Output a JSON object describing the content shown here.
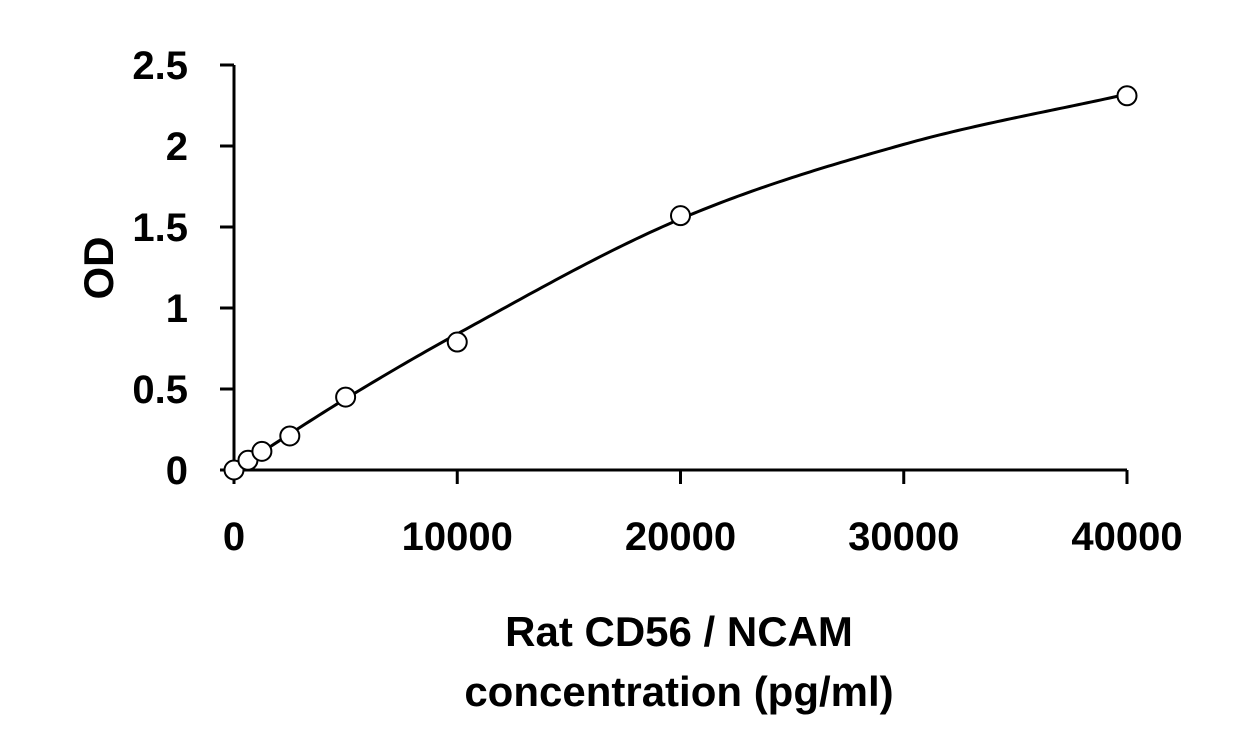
{
  "chart_data": {
    "type": "scatter",
    "title": "",
    "xlabel_lines": [
      "Rat CD56 / NCAM",
      "concentration (pg/ml)"
    ],
    "ylabel": "OD",
    "xlim": [
      0,
      40000
    ],
    "ylim": [
      0,
      2.5
    ],
    "x_ticks": [
      0,
      10000,
      20000,
      30000,
      40000
    ],
    "y_ticks": [
      0,
      0.5,
      1,
      1.5,
      2,
      2.5
    ],
    "x_tick_labels": [
      "0",
      "10000",
      "20000",
      "30000",
      "40000"
    ],
    "y_tick_labels": [
      "0",
      "0.5",
      "1",
      "1.5",
      "2",
      "2.5"
    ],
    "grid": false,
    "legend": "none",
    "series": [
      {
        "marker": "open-circle",
        "x": [
          0,
          625,
          1250,
          2500,
          5000,
          10000,
          20000,
          40000
        ],
        "y": [
          0.0,
          0.06,
          0.115,
          0.21,
          0.45,
          0.79,
          1.57,
          2.31
        ]
      }
    ],
    "fit_curve": {
      "type": "smooth",
      "x": [
        0,
        5000,
        10000,
        20000,
        30000,
        40000
      ],
      "y": [
        0.0,
        0.44,
        0.84,
        1.55,
        2.01,
        2.32
      ]
    }
  }
}
